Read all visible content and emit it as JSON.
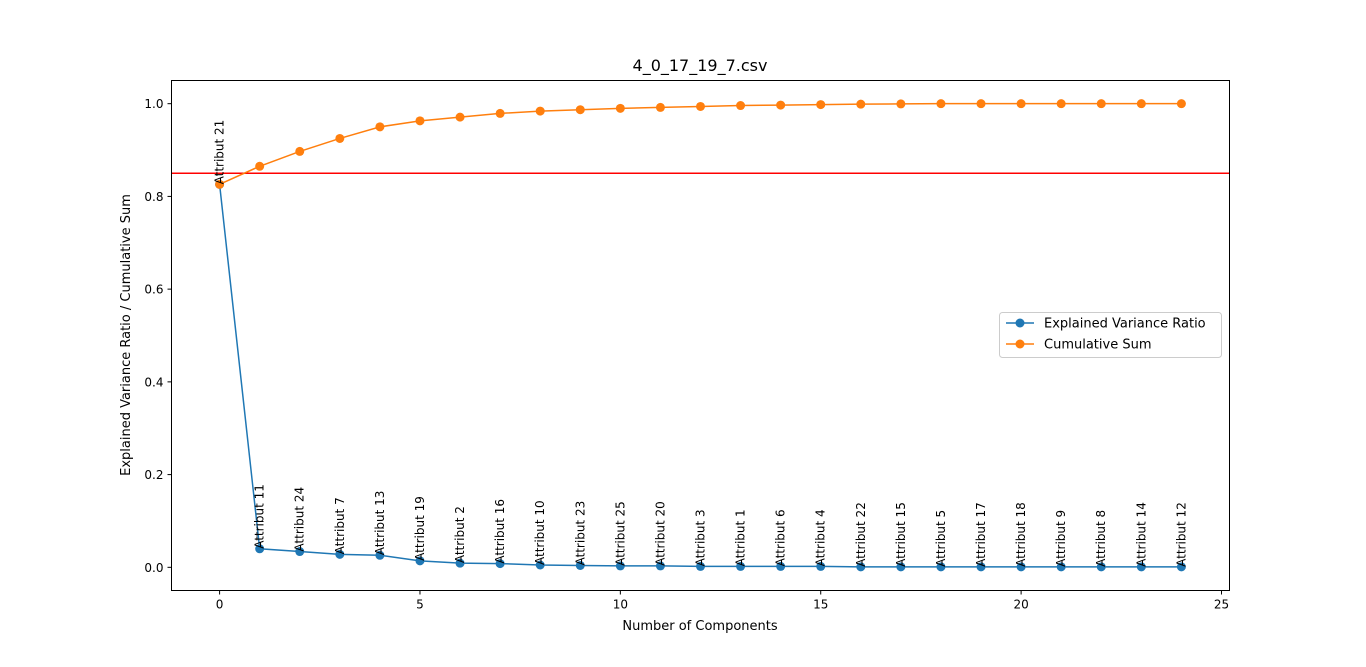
{
  "chart_data": {
    "type": "line",
    "title": "4_0_17_19_7.csv",
    "xlabel": "Number of Components",
    "ylabel": "Explained Variance Ratio / Cumulative Sum",
    "xlim": [
      -1.2,
      25.2
    ],
    "ylim": [
      -0.05,
      1.05
    ],
    "x_ticks": [
      0,
      5,
      10,
      15,
      20,
      25
    ],
    "y_ticks": [
      0.0,
      0.2,
      0.4,
      0.6,
      0.8,
      1.0
    ],
    "x_tick_labels": [
      "0",
      "5",
      "10",
      "15",
      "20",
      "25"
    ],
    "y_tick_labels": [
      "0.0",
      "0.2",
      "0.4",
      "0.6",
      "0.8",
      "1.0"
    ],
    "grid": false,
    "legend_position": "center-right",
    "threshold_line": {
      "y": 0.85,
      "color": "#ff0000"
    },
    "x": [
      0,
      1,
      2,
      3,
      4,
      5,
      6,
      7,
      8,
      9,
      10,
      11,
      12,
      13,
      14,
      15,
      16,
      17,
      18,
      19,
      20,
      21,
      22,
      23,
      24
    ],
    "series": [
      {
        "name": "Explained Variance Ratio",
        "color": "#1f77b4",
        "values": [
          0.826,
          0.04,
          0.034,
          0.028,
          0.026,
          0.014,
          0.009,
          0.008,
          0.005,
          0.004,
          0.003,
          0.003,
          0.002,
          0.002,
          0.002,
          0.002,
          0.001,
          0.001,
          0.001,
          0.001,
          0.001,
          0.001,
          0.001,
          0.001,
          0.001
        ]
      },
      {
        "name": "Cumulative Sum",
        "color": "#ff7f0e",
        "values": [
          0.826,
          0.865,
          0.897,
          0.925,
          0.95,
          0.963,
          0.971,
          0.979,
          0.984,
          0.987,
          0.99,
          0.992,
          0.994,
          0.996,
          0.997,
          0.998,
          0.999,
          0.9995,
          1.0,
          1.0,
          1.0,
          1.0,
          1.0,
          1.0,
          1.0
        ]
      }
    ],
    "annotations": [
      "Attribut 21",
      "Attribut 11",
      "Attribut 24",
      "Attribut 7",
      "Attribut 13",
      "Attribut 19",
      "Attribut 2",
      "Attribut 16",
      "Attribut 10",
      "Attribut 23",
      "Attribut 25",
      "Attribut 20",
      "Attribut 3",
      "Attribut 1",
      "Attribut 6",
      "Attribut 4",
      "Attribut 22",
      "Attribut 15",
      "Attribut 5",
      "Attribut 17",
      "Attribut 18",
      "Attribut 9",
      "Attribut 8",
      "Attribut 14",
      "Attribut 12"
    ]
  }
}
